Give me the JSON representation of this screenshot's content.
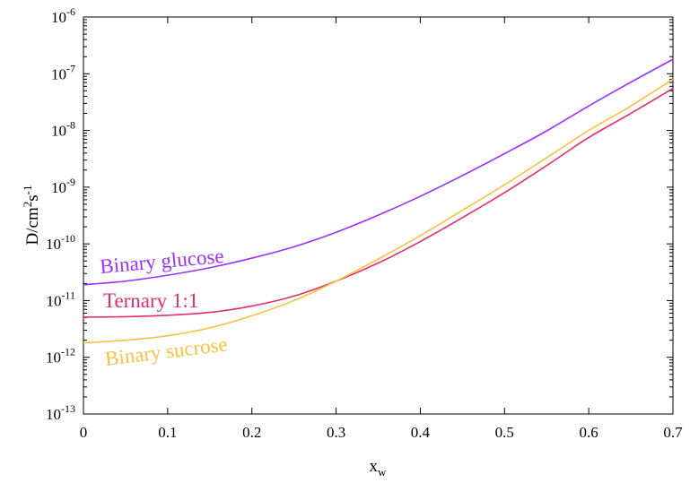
{
  "chart_data": {
    "type": "line",
    "title": "",
    "xlabel": {
      "main": "x",
      "sub": "w"
    },
    "ylabel": {
      "p1": "D/cm",
      "p1_sup": "2",
      "p2": "s",
      "p2_sup": "-1"
    },
    "xlim": [
      0,
      0.7
    ],
    "ylim": [
      1e-13,
      1e-06
    ],
    "yscale": "log",
    "grid": false,
    "legend": "inline labels next to curves",
    "x_ticks": [
      "0",
      "0.1",
      "0.2",
      "0.3",
      "0.4",
      "0.5",
      "0.6",
      "0.7"
    ],
    "y_ticks": [
      {
        "base": "10",
        "exp": "-6"
      },
      {
        "base": "10",
        "exp": "-7"
      },
      {
        "base": "10",
        "exp": "-8"
      },
      {
        "base": "10",
        "exp": "-9"
      },
      {
        "base": "10",
        "exp": "-10"
      },
      {
        "base": "10",
        "exp": "-11"
      },
      {
        "base": "10",
        "exp": "-12"
      },
      {
        "base": "10",
        "exp": "-13"
      }
    ],
    "series": [
      {
        "name": "Binary glucose",
        "color": "#9b30ff",
        "x": [
          0,
          0.05,
          0.1,
          0.15,
          0.2,
          0.25,
          0.3,
          0.35,
          0.4,
          0.45,
          0.5,
          0.55,
          0.6,
          0.65,
          0.7
        ],
        "y": [
          1.9e-11,
          2.2e-11,
          2.8e-11,
          3.8e-11,
          5.6e-11,
          8.9e-11,
          1.6e-10,
          3.2e-10,
          6.9e-10,
          1.6e-09,
          3.9e-09,
          9.8e-09,
          2.7e-08,
          7.1e-08,
          1.8e-07
        ]
      },
      {
        "name": "Ternary 1:1",
        "color": "#e0306a",
        "x": [
          0,
          0.05,
          0.1,
          0.15,
          0.2,
          0.25,
          0.3,
          0.35,
          0.4,
          0.45,
          0.5,
          0.55,
          0.6,
          0.65,
          0.7
        ],
        "y": [
          5.1e-12,
          5.2e-12,
          5.5e-12,
          6.2e-12,
          8e-12,
          1.2e-11,
          2.2e-11,
          4.6e-11,
          1.1e-10,
          2.9e-10,
          8e-10,
          2.4e-09,
          7.5e-09,
          2e-08,
          5.5e-08
        ]
      },
      {
        "name": "Binary sucrose",
        "color": "#f5c242",
        "x": [
          0,
          0.05,
          0.1,
          0.15,
          0.2,
          0.25,
          0.3,
          0.35,
          0.4,
          0.45,
          0.5,
          0.55,
          0.6,
          0.65,
          0.7
        ],
        "y": [
          1.8e-12,
          2e-12,
          2.4e-12,
          3.3e-12,
          5.4e-12,
          1e-11,
          2.2e-11,
          5.4e-11,
          1.4e-10,
          3.9e-10,
          1.1e-09,
          3.3e-09,
          1e-08,
          2.7e-08,
          8e-08
        ]
      }
    ]
  }
}
